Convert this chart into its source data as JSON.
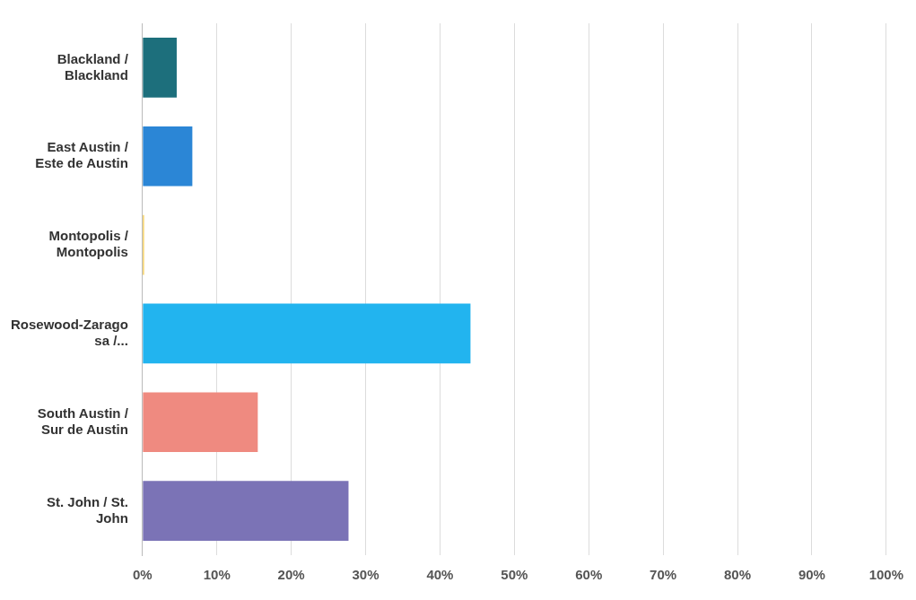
{
  "chart_data": {
    "type": "bar",
    "orientation": "horizontal",
    "categories": [
      "Blackland / Blackland",
      "East Austin / Este de Austin",
      "Montopolis / Montopolis",
      "Rosewood-Zaragosa /...",
      "South Austin / Sur de Austin",
      "St. John / St. John"
    ],
    "values": [
      4.6,
      6.7,
      0.2,
      44.1,
      15.5,
      27.7
    ],
    "colors": [
      "#1d6f7c",
      "#2b86d6",
      "#f2c43a",
      "#22b4ef",
      "#ef8a80",
      "#7b73b6"
    ],
    "xlim": [
      0,
      100
    ],
    "xticks": [
      {
        "value": 0,
        "label": "0%"
      },
      {
        "value": 10,
        "label": "10%"
      },
      {
        "value": 20,
        "label": "20%"
      },
      {
        "value": 30,
        "label": "30%"
      },
      {
        "value": 40,
        "label": "40%"
      },
      {
        "value": 50,
        "label": "50%"
      },
      {
        "value": 60,
        "label": "60%"
      },
      {
        "value": 70,
        "label": "70%"
      },
      {
        "value": 80,
        "label": "80%"
      },
      {
        "value": 90,
        "label": "90%"
      },
      {
        "value": 100,
        "label": "100%"
      }
    ],
    "grid": "x",
    "legend": false
  }
}
